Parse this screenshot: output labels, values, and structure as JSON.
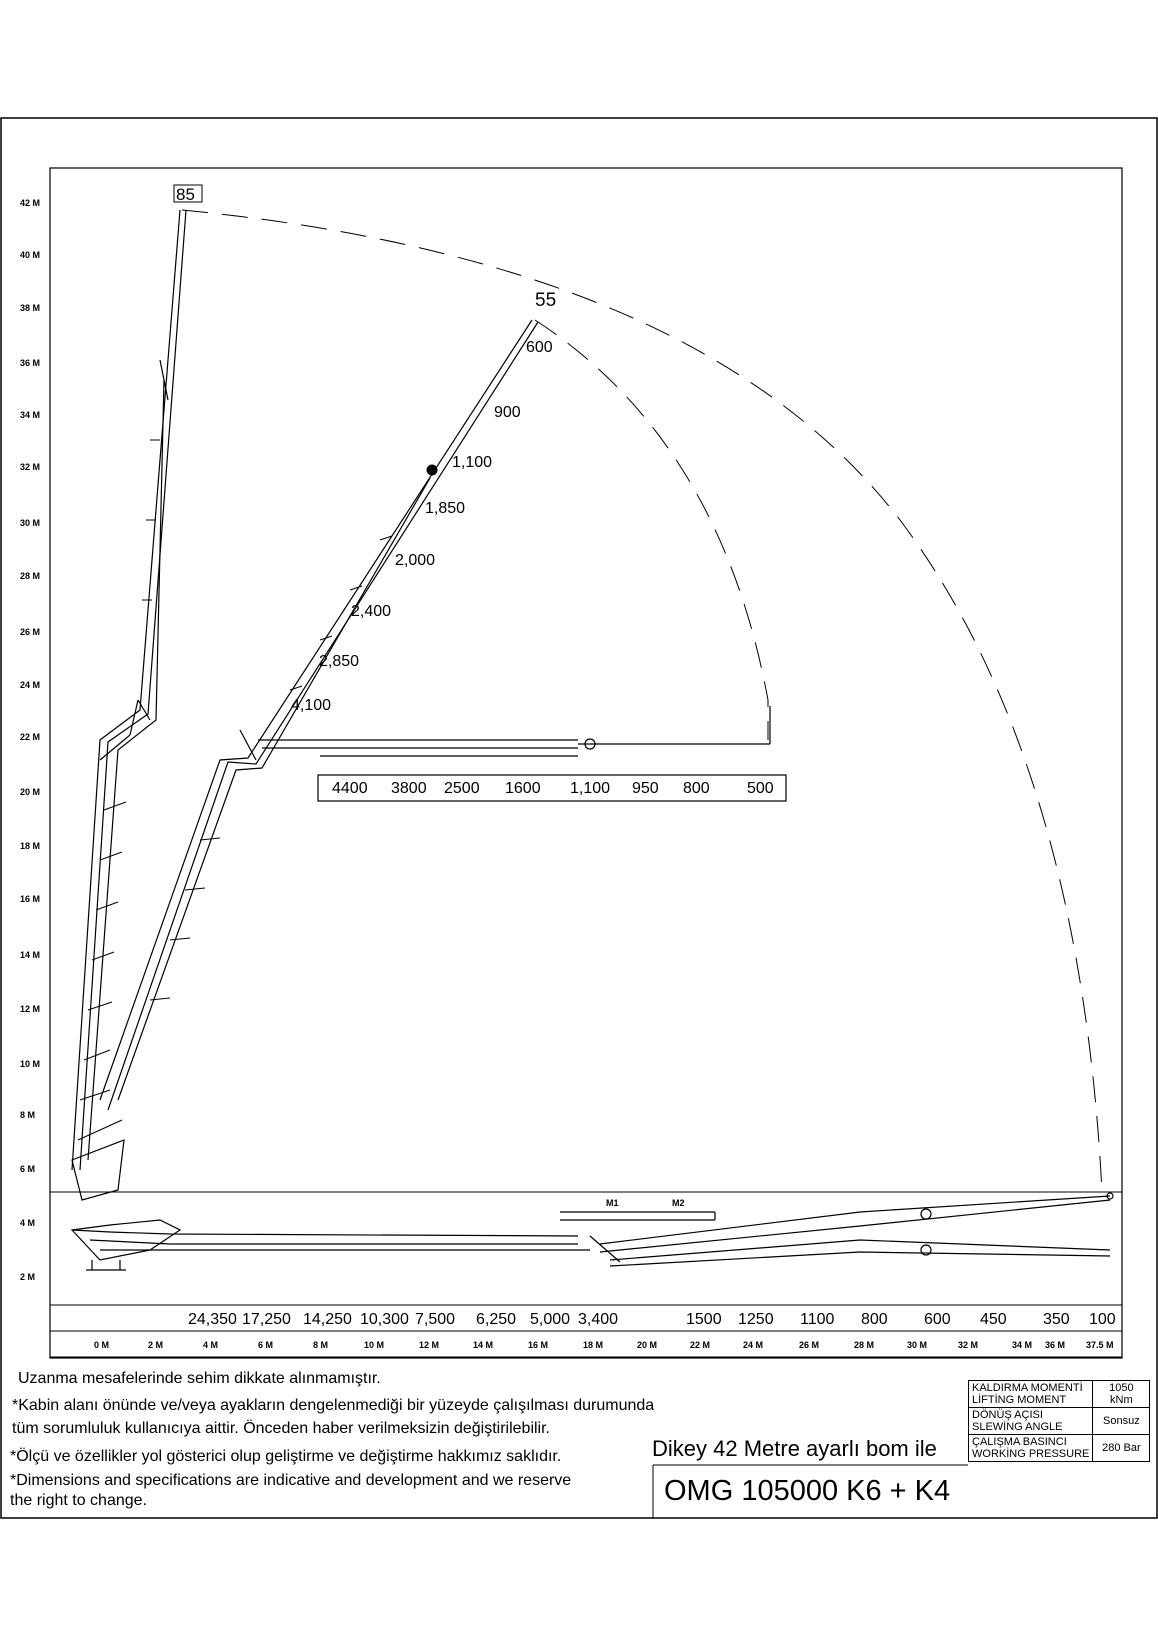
{
  "height_axis": [
    "42 M",
    "40 M",
    "38 M",
    "36 M",
    "34 M",
    "32 M",
    "30 M",
    "28 M",
    "26 M",
    "24 M",
    "22 M",
    "20 M",
    "18 M",
    "16 M",
    "14 M",
    "12 M",
    "10 M",
    "8 M",
    "6 M",
    "4 M",
    "2 M"
  ],
  "reach_axis": [
    "0 M",
    "2 M",
    "4 M",
    "6 M",
    "8 M",
    "10 M",
    "12 M",
    "14 M",
    "16 M",
    "18 M",
    "20 M",
    "22 M",
    "24 M",
    "26 M",
    "28 M",
    "30 M",
    "32 M",
    "34 M",
    "36 M",
    "37.5 M"
  ],
  "boom_angles": {
    "vertical": "85",
    "diagonal": "55"
  },
  "diagonal_loads": [
    "600",
    "900",
    "1,100",
    "1,850",
    "2,000",
    "2,400",
    "2,850",
    "4,100"
  ],
  "horizontal_loads": [
    "4400",
    "3800",
    "2500",
    "1600",
    "1,100",
    "950",
    "800",
    "500"
  ],
  "bottom_loads": [
    "24,350",
    "17,250",
    "14,250",
    "10,300",
    "7,500",
    "6,250",
    "5,000",
    "3,400",
    "1500",
    "1250",
    "1100",
    "800",
    "600",
    "450",
    "350",
    "100"
  ],
  "markers": {
    "m1": "M1",
    "m2": "M2"
  },
  "notes": {
    "line1": "Uzanma mesafelerinde sehim dikkate alınmamıştır.",
    "line2": "*Kabin alanı önünde ve/veya ayakların dengelenmediği bir yüzeyde çalışılması durumunda",
    "line3": "tüm sorumluluk kullanıcıya aittir. Önceden haber verilmeksizin değiştirilebilir.",
    "line4": "*Ölçü ve özellikler yol gösterici olup geliştirme ve değiştirme hakkımız saklıdır.",
    "line5": "*Dimensions and specifications are indicative and development and we reserve",
    "line6": "the right to change."
  },
  "spec_title": "Dikey 42 Metre ayarlı bom ile",
  "model": "OMG 105000 K6 + K4",
  "specs": [
    {
      "label_tr": "KALDIRMA MOMENTİ",
      "label_en": "LİFTİNG MOMENT",
      "value": "1050 kNm"
    },
    {
      "label_tr": "DÖNÜŞ AÇISI",
      "label_en": "SLEWİNG ANGLE",
      "value": "Sonsuz"
    },
    {
      "label_tr": "ÇALIŞMA BASINCI",
      "label_en": "WORKİNG PRESSURE",
      "value": "280 Bar"
    }
  ]
}
